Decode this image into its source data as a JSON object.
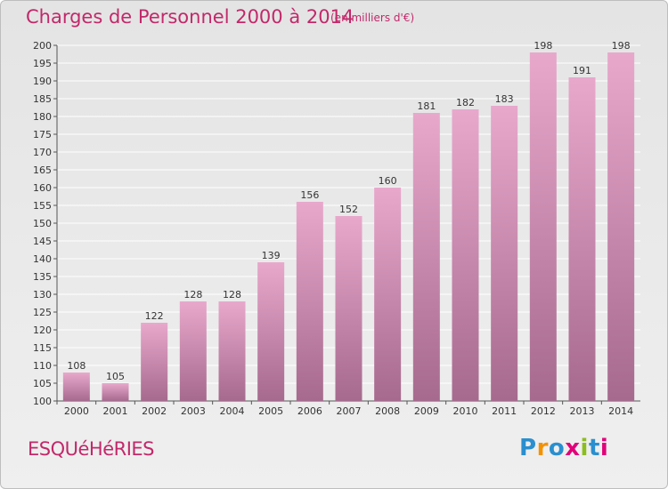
{
  "title": "Charges de Personnel 2000 à 2014",
  "subtitle": "(en milliers d'€)",
  "commune": "ESQUéHéRIES",
  "logo": {
    "text": "Proxiti",
    "colors": [
      "#2a8fcf",
      "#f39200",
      "#2a8fcf",
      "#e2007a",
      "#8cbd1f",
      "#2a8fcf",
      "#e2007a"
    ]
  },
  "colors": {
    "bar_top": "#e8a8cc",
    "bar_bottom": "#a66a8e",
    "text_accent": "#c2286a"
  },
  "chart_data": {
    "type": "bar",
    "title": "Charges de Personnel 2000 à 2014",
    "subtitle": "(en milliers d'€)",
    "xlabel": "",
    "ylabel": "",
    "categories": [
      "2000",
      "2001",
      "2002",
      "2003",
      "2004",
      "2005",
      "2006",
      "2007",
      "2008",
      "2009",
      "2010",
      "2011",
      "2012",
      "2013",
      "2014"
    ],
    "values": [
      108,
      105,
      122,
      128,
      128,
      139,
      156,
      152,
      160,
      181,
      182,
      183,
      198,
      191,
      198
    ],
    "ylim": [
      100,
      200
    ],
    "yticks": [
      100,
      105,
      110,
      115,
      120,
      125,
      130,
      135,
      140,
      145,
      150,
      155,
      160,
      165,
      170,
      175,
      180,
      185,
      190,
      195,
      200
    ],
    "grid": true,
    "legend": "none"
  }
}
